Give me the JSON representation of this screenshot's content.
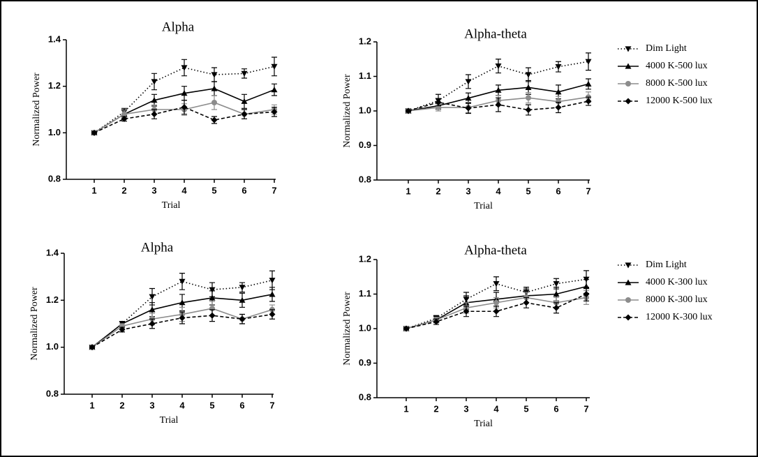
{
  "chart_data": [
    {
      "type": "line",
      "title": "Alpha",
      "x_label": "Trial",
      "y_label": "Normalized Power",
      "categories": [
        "1",
        "2",
        "3",
        "4",
        "5",
        "6",
        "7"
      ],
      "ylim": [
        0.8,
        1.4
      ],
      "yticks": [
        {
          "value": 0.8,
          "label": "0.8"
        },
        {
          "value": 1.0,
          "label": "1.0"
        },
        {
          "value": 1.2,
          "label": "1.2"
        },
        {
          "value": 1.4,
          "label": "1.4"
        }
      ],
      "series": [
        {
          "color": "#000000",
          "dash": "dotted",
          "marker": "triangle-down",
          "values": [
            1.0,
            1.09,
            1.22,
            1.28,
            1.25,
            1.255,
            1.285
          ],
          "errors": [
            0.005,
            0.015,
            0.035,
            0.035,
            0.03,
            0.02,
            0.04
          ]
        },
        {
          "color": "#000000",
          "dash": "solid",
          "marker": "triangle-up",
          "values": [
            1.0,
            1.08,
            1.14,
            1.17,
            1.19,
            1.135,
            1.185
          ],
          "errors": [
            0.005,
            0.015,
            0.025,
            0.03,
            0.03,
            0.03,
            0.025
          ]
        },
        {
          "color": "#8c8c8c",
          "dash": "solid",
          "marker": "circle",
          "values": [
            1.0,
            1.08,
            1.1,
            1.1,
            1.13,
            1.08,
            1.1
          ],
          "errors": [
            0.005,
            0.015,
            0.02,
            0.025,
            0.03,
            0.02,
            0.02
          ]
        },
        {
          "color": "#000000",
          "dash": "dashed",
          "marker": "diamond",
          "values": [
            1.0,
            1.06,
            1.08,
            1.11,
            1.055,
            1.08,
            1.09
          ],
          "errors": [
            0.005,
            0.01,
            0.02,
            0.03,
            0.015,
            0.02,
            0.02
          ]
        }
      ]
    },
    {
      "type": "line",
      "title": "Alpha-theta",
      "x_label": "Trial",
      "y_label": "Normalized Power",
      "categories": [
        "1",
        "2",
        "3",
        "4",
        "5",
        "6",
        "7"
      ],
      "ylim": [
        0.8,
        1.2
      ],
      "yticks": [
        {
          "value": 0.8,
          "label": "0.8"
        },
        {
          "value": 0.9,
          "label": "0.9"
        },
        {
          "value": 1.0,
          "label": "1.0"
        },
        {
          "value": 1.1,
          "label": "1.1"
        },
        {
          "value": 1.2,
          "label": "1.2"
        }
      ],
      "legend": "right",
      "series": [
        {
          "name": "Dim Light",
          "color": "#000000",
          "dash": "dotted",
          "marker": "triangle-down",
          "values": [
            1.0,
            1.03,
            1.085,
            1.13,
            1.105,
            1.128,
            1.143
          ],
          "errors": [
            0.003,
            0.018,
            0.02,
            0.02,
            0.02,
            0.015,
            0.025
          ]
        },
        {
          "name": "4000 K-500 lux",
          "color": "#000000",
          "dash": "solid",
          "marker": "triangle-up",
          "values": [
            1.0,
            1.015,
            1.037,
            1.06,
            1.068,
            1.055,
            1.078
          ],
          "errors": [
            0.003,
            0.01,
            0.015,
            0.015,
            0.02,
            0.02,
            0.015
          ]
        },
        {
          "name": "8000 K-500 lux",
          "color": "#8c8c8c",
          "dash": "solid",
          "marker": "circle",
          "values": [
            1.0,
            1.01,
            1.01,
            1.03,
            1.038,
            1.027,
            1.04
          ],
          "errors": [
            0.003,
            0.01,
            0.015,
            0.015,
            0.015,
            0.015,
            0.015
          ]
        },
        {
          "name": "12000 K-500 lux",
          "color": "#000000",
          "dash": "dashed",
          "marker": "diamond",
          "values": [
            1.0,
            1.025,
            1.008,
            1.018,
            1.003,
            1.01,
            1.028
          ],
          "errors": [
            0.003,
            0.01,
            0.015,
            0.02,
            0.015,
            0.015,
            0.012
          ]
        }
      ]
    },
    {
      "type": "line",
      "title": "Alpha",
      "x_label": "Trial",
      "y_label": "Normalized Power",
      "categories": [
        "1",
        "2",
        "3",
        "4",
        "5",
        "6",
        "7"
      ],
      "ylim": [
        0.8,
        1.4
      ],
      "yticks": [
        {
          "value": 0.8,
          "label": "0.8"
        },
        {
          "value": 1.0,
          "label": "1.0"
        },
        {
          "value": 1.2,
          "label": "1.2"
        },
        {
          "value": 1.4,
          "label": "1.4"
        }
      ],
      "series": [
        {
          "color": "#000000",
          "dash": "dotted",
          "marker": "triangle-down",
          "values": [
            1.0,
            1.1,
            1.215,
            1.28,
            1.245,
            1.255,
            1.285
          ],
          "errors": [
            0.005,
            0.01,
            0.035,
            0.035,
            0.03,
            0.02,
            0.04
          ]
        },
        {
          "color": "#000000",
          "dash": "solid",
          "marker": "triangle-up",
          "values": [
            1.0,
            1.1,
            1.16,
            1.19,
            1.21,
            1.2,
            1.225
          ],
          "errors": [
            0.005,
            0.01,
            0.03,
            0.035,
            0.03,
            0.03,
            0.03
          ]
        },
        {
          "color": "#8c8c8c",
          "dash": "solid",
          "marker": "circle",
          "values": [
            1.0,
            1.09,
            1.12,
            1.14,
            1.165,
            1.12,
            1.16
          ],
          "errors": [
            0.005,
            0.01,
            0.025,
            0.03,
            0.03,
            0.02,
            0.02
          ]
        },
        {
          "color": "#000000",
          "dash": "dashed",
          "marker": "diamond",
          "values": [
            1.0,
            1.075,
            1.1,
            1.125,
            1.135,
            1.12,
            1.14
          ],
          "errors": [
            0.005,
            0.01,
            0.02,
            0.025,
            0.025,
            0.02,
            0.02
          ]
        }
      ]
    },
    {
      "type": "line",
      "title": "Alpha-theta",
      "x_label": "Trial",
      "y_label": "Normalized Power",
      "categories": [
        "1",
        "2",
        "3",
        "4",
        "5",
        "6",
        "7"
      ],
      "ylim": [
        0.8,
        1.2
      ],
      "yticks": [
        {
          "value": 0.8,
          "label": "0.8"
        },
        {
          "value": 0.9,
          "label": "0.9"
        },
        {
          "value": 1.0,
          "label": "1.0"
        },
        {
          "value": 1.1,
          "label": "1.1"
        },
        {
          "value": 1.2,
          "label": "1.2"
        }
      ],
      "legend": "right",
      "series": [
        {
          "name": "Dim Light",
          "color": "#000000",
          "dash": "dotted",
          "marker": "triangle-down",
          "values": [
            1.0,
            1.03,
            1.085,
            1.13,
            1.105,
            1.13,
            1.143
          ],
          "errors": [
            0.003,
            0.008,
            0.02,
            0.02,
            0.015,
            0.015,
            0.025
          ]
        },
        {
          "name": "4000 K-300 lux",
          "color": "#000000",
          "dash": "solid",
          "marker": "triangle-up",
          "values": [
            1.0,
            1.025,
            1.075,
            1.085,
            1.095,
            1.1,
            1.122
          ],
          "errors": [
            0.003,
            0.008,
            0.02,
            0.02,
            0.02,
            0.02,
            0.02
          ]
        },
        {
          "name": "8000 K-300 lux",
          "color": "#8c8c8c",
          "dash": "solid",
          "marker": "circle",
          "values": [
            1.0,
            1.025,
            1.06,
            1.075,
            1.09,
            1.075,
            1.09
          ],
          "errors": [
            0.003,
            0.008,
            0.015,
            0.015,
            0.015,
            0.015,
            0.02
          ]
        },
        {
          "name": "12000 K-300 lux",
          "color": "#000000",
          "dash": "dashed",
          "marker": "diamond",
          "values": [
            1.0,
            1.02,
            1.05,
            1.05,
            1.075,
            1.06,
            1.1
          ],
          "errors": [
            0.003,
            0.008,
            0.015,
            0.015,
            0.015,
            0.015,
            0.02
          ]
        }
      ]
    }
  ]
}
